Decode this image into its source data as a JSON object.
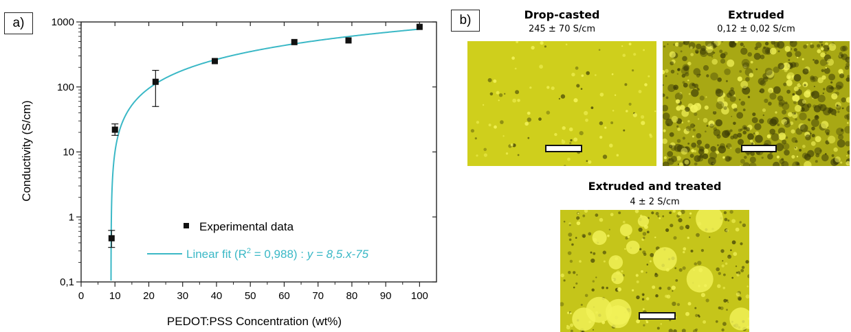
{
  "panel_a": {
    "label": "a)"
  },
  "panel_b": {
    "label": "b)",
    "images": [
      {
        "title": "Drop-casted",
        "value": "245 ± 70 S/cm"
      },
      {
        "title": "Extruded",
        "value": "0,12 ± 0,02 S/cm"
      },
      {
        "title": "Extruded and treated",
        "value": "4 ± 2 S/cm"
      }
    ],
    "colors": {
      "image_base": "#cfcf1c",
      "image_dark": "#3d3d06",
      "image_bright": "#f3f35a"
    }
  },
  "chart_data": {
    "type": "scatter",
    "xlabel": "PEDOT:PSS Concentration (wt%)",
    "ylabel": "Conductivity (S/cm)",
    "x_scale": "linear",
    "y_scale": "log",
    "xlim": [
      0,
      105
    ],
    "ylim": [
      0.1,
      1000
    ],
    "x_ticks": [
      0,
      10,
      20,
      30,
      40,
      50,
      60,
      70,
      80,
      90,
      100
    ],
    "x_tick_labels": [
      "0",
      "10",
      "20",
      "30",
      "40",
      "50",
      "60",
      "70",
      "80",
      "90",
      "100"
    ],
    "y_ticks": [
      0.1,
      1,
      10,
      100,
      1000
    ],
    "y_tick_labels": [
      "0,1",
      "1",
      "10",
      "100",
      "1000"
    ],
    "grid": false,
    "legend_position": "bottom-right",
    "series": [
      {
        "name": "Experimental data",
        "type": "scatter",
        "color": "#111111",
        "points": [
          {
            "x": 9,
            "y": 0.47,
            "err_low": 0.34,
            "err_high": 0.62
          },
          {
            "x": 10,
            "y": 22,
            "err_low": 18,
            "err_high": 27
          },
          {
            "x": 22,
            "y": 120,
            "err_low": 50,
            "err_high": 180
          },
          {
            "x": 39.5,
            "y": 250
          },
          {
            "x": 63,
            "y": 490
          },
          {
            "x": 79,
            "y": 520
          },
          {
            "x": 100,
            "y": 840
          }
        ]
      },
      {
        "name": "Linear fit (R",
        "name_sup": "2",
        "name_rest": " = 0,988) : ",
        "equation": "y = 8,5.x-75",
        "type": "line",
        "color": "#3ab8c6",
        "slope": 8.5,
        "intercept": -75
      }
    ]
  }
}
